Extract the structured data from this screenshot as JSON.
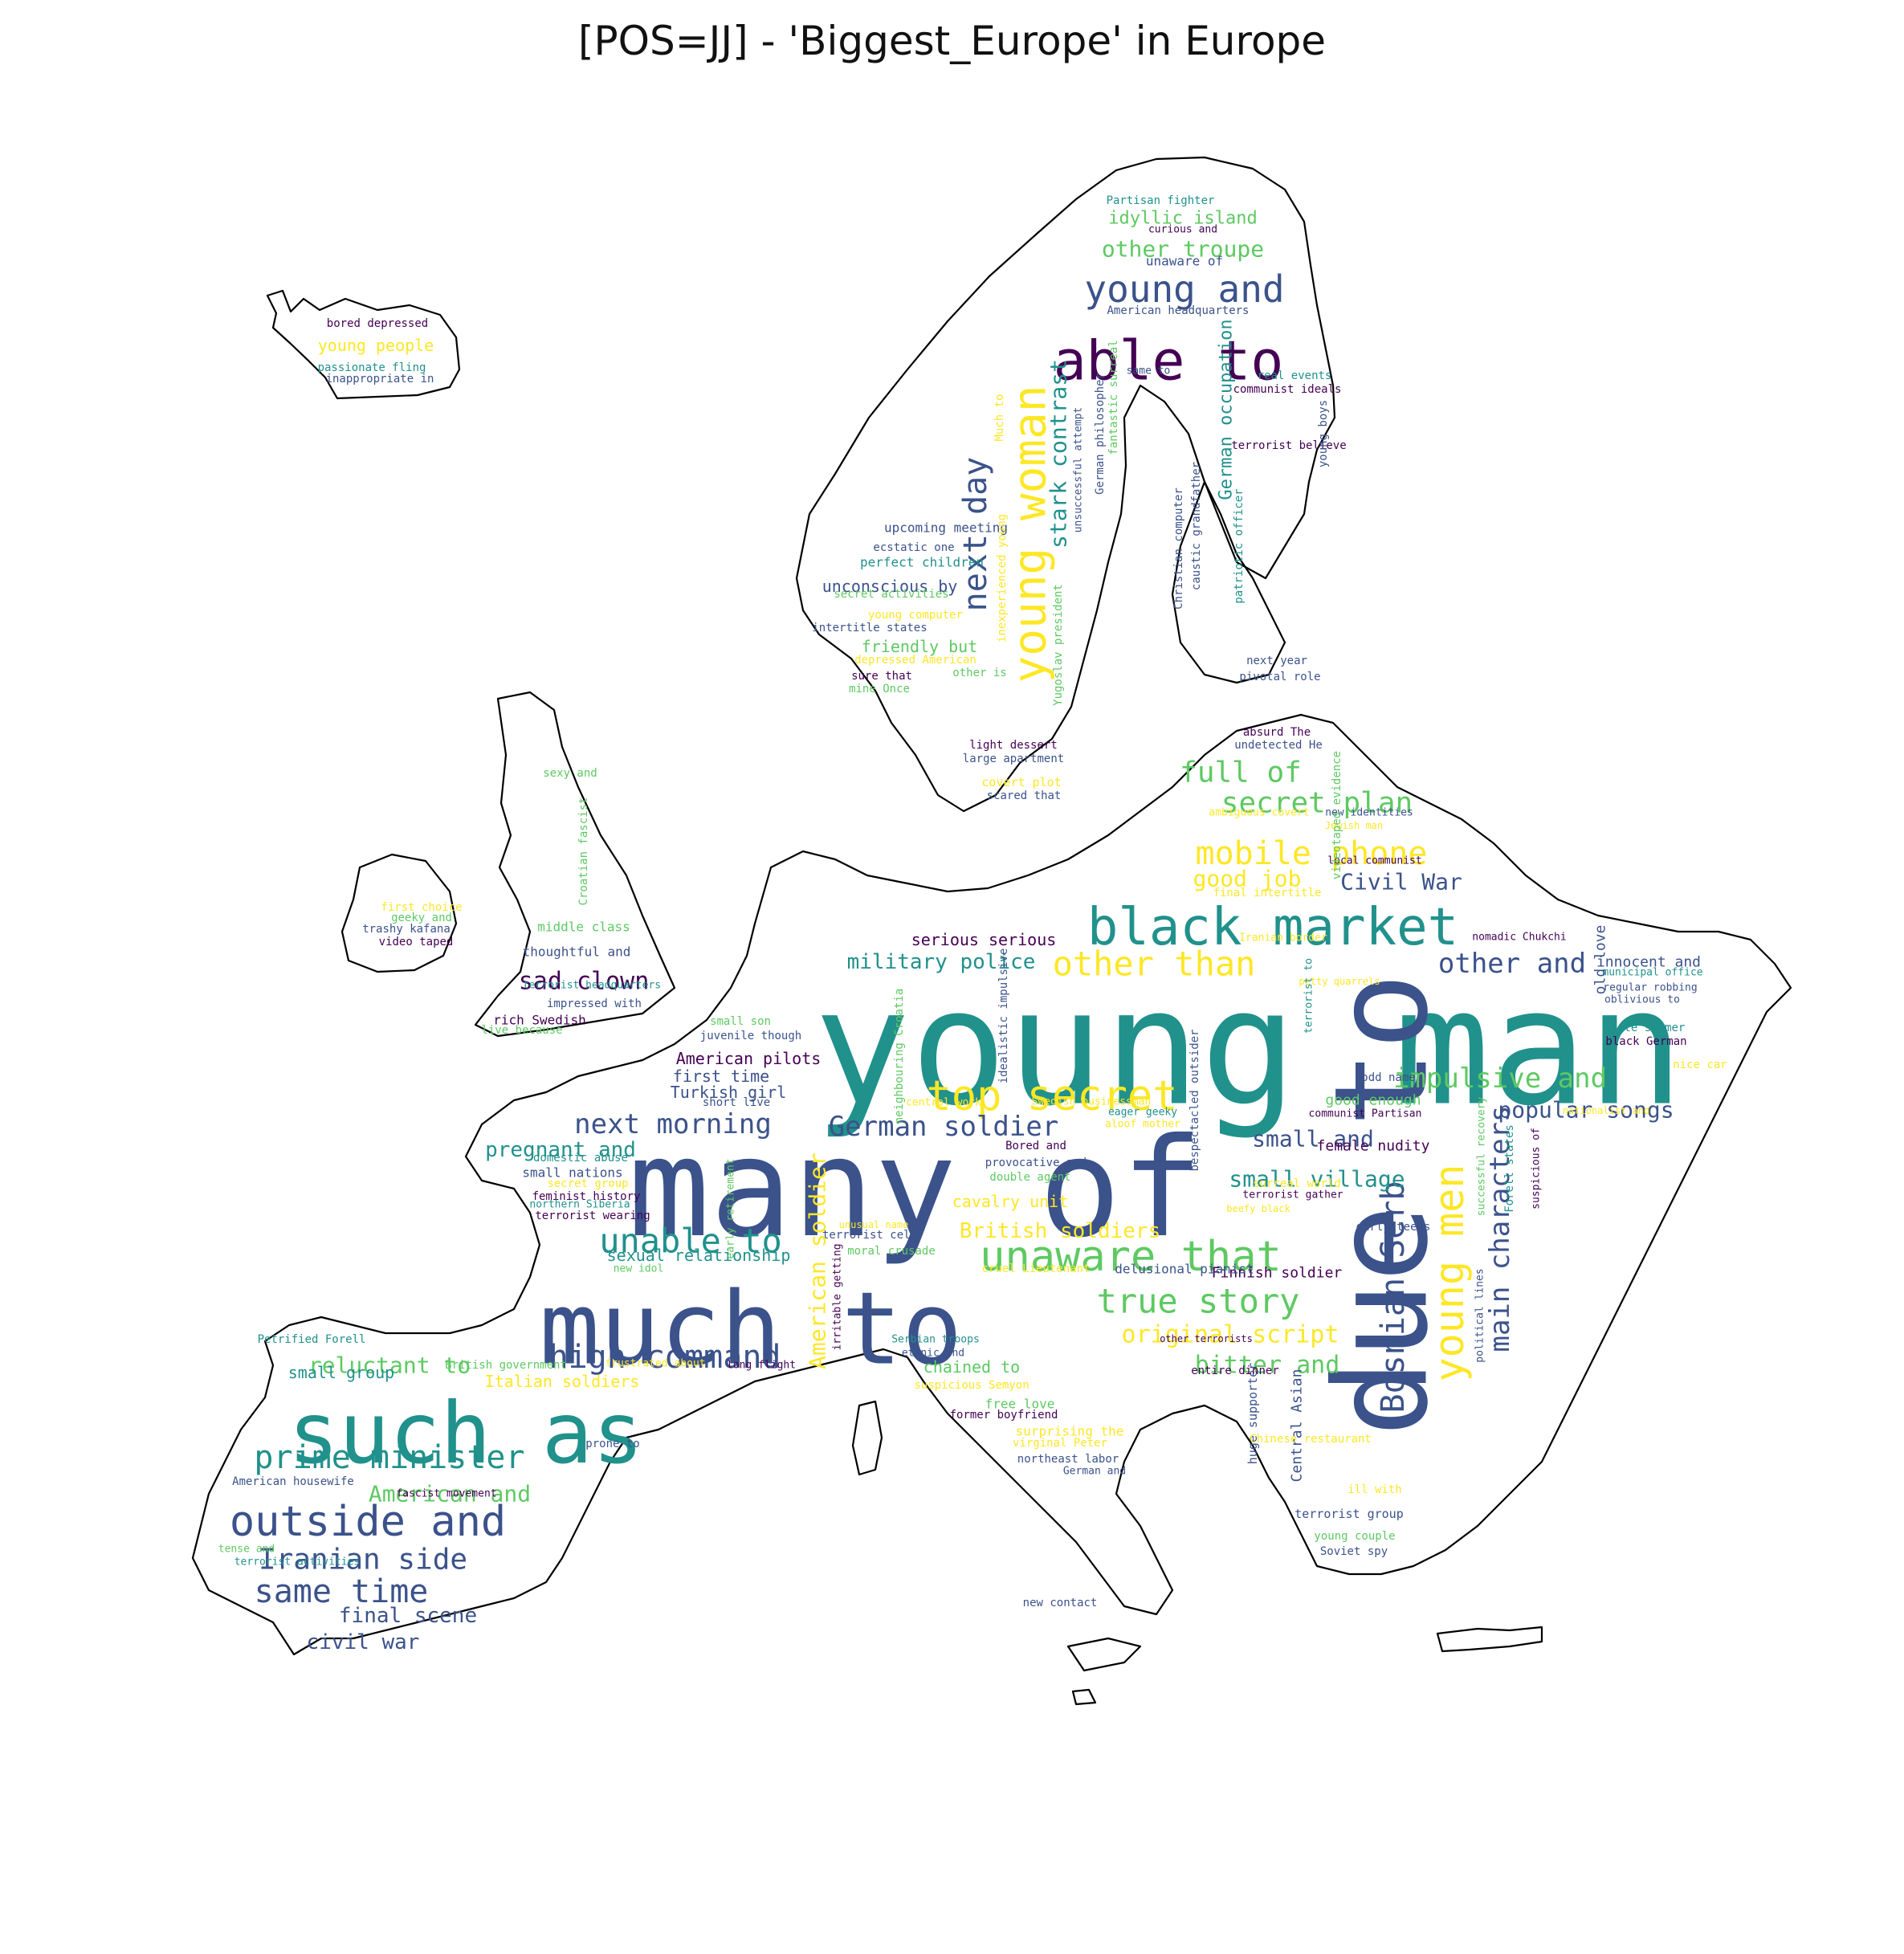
{
  "title": "[POS=JJ] - 'Biggest_Europe' in Europe",
  "palette": [
    "#440154",
    "#3b528b",
    "#21918c",
    "#5ec962",
    "#fde725"
  ],
  "words": [
    {
      "text": "young man",
      "c": 2
    },
    {
      "text": "many of",
      "c": 1
    },
    {
      "text": "due to",
      "c": 1
    },
    {
      "text": "much to",
      "c": 1
    },
    {
      "text": "such as",
      "c": 2
    },
    {
      "text": "able to",
      "c": 0
    },
    {
      "text": "young woman",
      "c": 4
    },
    {
      "text": "young and",
      "c": 1
    },
    {
      "text": "black market",
      "c": 2
    },
    {
      "text": "top secret",
      "c": 4
    },
    {
      "text": "unaware that",
      "c": 3
    },
    {
      "text": "young men",
      "c": 4
    },
    {
      "text": "Bosnian Serb",
      "c": 1
    },
    {
      "text": "outside and",
      "c": 1
    },
    {
      "text": "prime minister",
      "c": 2
    },
    {
      "text": "next day",
      "c": 1
    },
    {
      "text": "unable to",
      "c": 2
    },
    {
      "text": "true story",
      "c": 3
    },
    {
      "text": "high command",
      "c": 1
    },
    {
      "text": "Iranian side",
      "c": 1
    },
    {
      "text": "same time",
      "c": 1
    },
    {
      "text": "mobile phone",
      "c": 4
    },
    {
      "text": "secret plan",
      "c": 3
    },
    {
      "text": "full of",
      "c": 3
    },
    {
      "text": "other than",
      "c": 4
    },
    {
      "text": "other and",
      "c": 1
    },
    {
      "text": "impulsive and",
      "c": 3
    },
    {
      "text": "next morning",
      "c": 1
    },
    {
      "text": "German soldier",
      "c": 1
    },
    {
      "text": "main characters",
      "c": 1
    },
    {
      "text": "stark contrast",
      "c": 2
    },
    {
      "text": "other troupe",
      "c": 3
    },
    {
      "text": "sad clown",
      "c": 0
    },
    {
      "text": "military police",
      "c": 2
    },
    {
      "text": "small and",
      "c": 1
    },
    {
      "text": "small village",
      "c": 2
    },
    {
      "text": "popular songs",
      "c": 1
    },
    {
      "text": "original script",
      "c": 4
    },
    {
      "text": "bitter and",
      "c": 3
    },
    {
      "text": "Civil War",
      "c": 1
    },
    {
      "text": "good job",
      "c": 4
    },
    {
      "text": "British soldiers",
      "c": 4
    },
    {
      "text": "American soldier",
      "c": 4
    },
    {
      "text": "reluctant to",
      "c": 3
    },
    {
      "text": "American and",
      "c": 3
    },
    {
      "text": "final scene",
      "c": 1
    },
    {
      "text": "civil war",
      "c": 1
    },
    {
      "text": "pregnant and",
      "c": 2
    },
    {
      "text": "German occupation",
      "c": 2
    },
    {
      "text": "idyllic island",
      "c": 3
    },
    {
      "text": "serious serious",
      "c": 0
    },
    {
      "text": "American pilots",
      "c": 0
    },
    {
      "text": "first time",
      "c": 1
    },
    {
      "text": "Turkish girl",
      "c": 1
    },
    {
      "text": "friendly but",
      "c": 3
    },
    {
      "text": "unconscious by",
      "c": 1
    },
    {
      "text": "young people",
      "c": 4
    },
    {
      "text": "bored depressed",
      "c": 0
    },
    {
      "text": "passionate fling",
      "c": 2
    },
    {
      "text": "inappropriate in",
      "c": 1
    },
    {
      "text": "unaware of",
      "c": 1
    },
    {
      "text": "curious and",
      "c": 0
    },
    {
      "text": "Partisan fighter",
      "c": 2
    },
    {
      "text": "American headquarters",
      "c": 1
    },
    {
      "text": "same to",
      "c": 1
    },
    {
      "text": "real events",
      "c": 2
    },
    {
      "text": "communist ideals",
      "c": 0
    },
    {
      "text": "terrorist believe",
      "c": 0
    },
    {
      "text": "young boys",
      "c": 1
    },
    {
      "text": "upcoming meeting",
      "c": 1
    },
    {
      "text": "ecstatic one",
      "c": 1
    },
    {
      "text": "perfect children",
      "c": 2
    },
    {
      "text": "secret activities",
      "c": 3
    },
    {
      "text": "young computer",
      "c": 4
    },
    {
      "text": "intertitle states",
      "c": 1
    },
    {
      "text": "depressed American",
      "c": 4
    },
    {
      "text": "sure that",
      "c": 0
    },
    {
      "text": "other is",
      "c": 3
    },
    {
      "text": "mine Once",
      "c": 3
    },
    {
      "text": "next year",
      "c": 1
    },
    {
      "text": "pivotal role",
      "c": 1
    },
    {
      "text": "absurd The",
      "c": 0
    },
    {
      "text": "undetected He",
      "c": 1
    },
    {
      "text": "light dessert",
      "c": 0
    },
    {
      "text": "large apartment",
      "c": 1
    },
    {
      "text": "covert plot",
      "c": 4
    },
    {
      "text": "scared that",
      "c": 1
    },
    {
      "text": "ambiguous covert",
      "c": 4
    },
    {
      "text": "new identities",
      "c": 1
    },
    {
      "text": "Jewish man",
      "c": 4
    },
    {
      "text": "local communist",
      "c": 0
    },
    {
      "text": "final intertitle",
      "c": 4
    },
    {
      "text": "videotaped evidence",
      "c": 3
    },
    {
      "text": "Iranian border",
      "c": 4
    },
    {
      "text": "nomadic Chukchi",
      "c": 0
    },
    {
      "text": "innocent and",
      "c": 1
    },
    {
      "text": "municipal office",
      "c": 2
    },
    {
      "text": "regular robbing",
      "c": 1
    },
    {
      "text": "oblivious to",
      "c": 1
    },
    {
      "text": "late summer",
      "c": 2
    },
    {
      "text": "black German",
      "c": 0
    },
    {
      "text": "nice car",
      "c": 4
    },
    {
      "text": "old love",
      "c": 1
    },
    {
      "text": "petty quarrels",
      "c": 4
    },
    {
      "text": "terrorist to",
      "c": 2
    },
    {
      "text": "odd name",
      "c": 1
    },
    {
      "text": "good enough",
      "c": 3
    },
    {
      "text": "communist Partisan",
      "c": 0
    },
    {
      "text": "female nudity",
      "c": 0
    },
    {
      "text": "surreal world",
      "c": 4
    },
    {
      "text": "terrorist gather",
      "c": 0
    },
    {
      "text": "beefy black",
      "c": 4
    },
    {
      "text": "early teens",
      "c": 1
    },
    {
      "text": "successful recovery",
      "c": 3
    },
    {
      "text": "Forell states",
      "c": 2
    },
    {
      "text": "suspicious of",
      "c": 0
    },
    {
      "text": "nationalist and",
      "c": 4
    },
    {
      "text": "political lines",
      "c": 1
    },
    {
      "text": "huge supporter",
      "c": 1
    },
    {
      "text": "Central Asian",
      "c": 1
    },
    {
      "text": "entire dinner",
      "c": 0
    },
    {
      "text": "Chinese restaurant",
      "c": 4
    },
    {
      "text": "ill with",
      "c": 4
    },
    {
      "text": "terrorist group",
      "c": 1
    },
    {
      "text": "young couple",
      "c": 3
    },
    {
      "text": "Soviet spy",
      "c": 1
    },
    {
      "text": "other terrorists",
      "c": 0
    },
    {
      "text": "Finnish soldier",
      "c": 0
    },
    {
      "text": "delusional pianist",
      "c": 1
    },
    {
      "text": "cruel Lieutenant",
      "c": 4
    },
    {
      "text": "moral crusade",
      "c": 3
    },
    {
      "text": "new idol",
      "c": 3
    },
    {
      "text": "sexual relationship",
      "c": 2
    },
    {
      "text": "irritable getting",
      "c": 0
    },
    {
      "text": "terrorist cell",
      "c": 1
    },
    {
      "text": "unusual name",
      "c": 4
    },
    {
      "text": "early retirement",
      "c": 3
    },
    {
      "text": "Serbian troops",
      "c": 2
    },
    {
      "text": "ethnic and",
      "c": 1
    },
    {
      "text": "long flight",
      "c": 0
    },
    {
      "text": "chained to",
      "c": 3
    },
    {
      "text": "suspicious Semyon",
      "c": 4
    },
    {
      "text": "free love",
      "c": 3
    },
    {
      "text": "former boyfriend",
      "c": 0
    },
    {
      "text": "surprising the",
      "c": 4
    },
    {
      "text": "virginal Peter",
      "c": 4
    },
    {
      "text": "northeast labor",
      "c": 1
    },
    {
      "text": "German and",
      "c": 1
    },
    {
      "text": "new contact",
      "c": 1
    },
    {
      "text": "cavalry unit",
      "c": 4
    },
    {
      "text": "double agent",
      "c": 3
    },
    {
      "text": "provocative and",
      "c": 1
    },
    {
      "text": "Bored and",
      "c": 0
    },
    {
      "text": "eager geeky",
      "c": 2
    },
    {
      "text": "aloof mother",
      "c": 4
    },
    {
      "text": "Swedish businessman",
      "c": 4
    },
    {
      "text": "central work",
      "c": 4
    },
    {
      "text": "short live",
      "c": 1
    },
    {
      "text": "small son",
      "c": 3
    },
    {
      "text": "juvenile though",
      "c": 1
    },
    {
      "text": "neighbouring Croatia",
      "c": 3
    },
    {
      "text": "idealistic impulsive",
      "c": 1
    },
    {
      "text": "bespectacled outsider",
      "c": 1
    },
    {
      "text": "domestic abuse",
      "c": 2
    },
    {
      "text": "small nations",
      "c": 1
    },
    {
      "text": "secret group",
      "c": 4
    },
    {
      "text": "feminist history",
      "c": 0
    },
    {
      "text": "northern Siberia",
      "c": 2
    },
    {
      "text": "terrorist wearing",
      "c": 0
    },
    {
      "text": "Italian soldiers",
      "c": 4
    },
    {
      "text": "British government",
      "c": 3
    },
    {
      "text": "frustrated about",
      "c": 4
    },
    {
      "text": "small group",
      "c": 2
    },
    {
      "text": "Petrified Forell",
      "c": 2
    },
    {
      "text": "prone to",
      "c": 1
    },
    {
      "text": "American housewife",
      "c": 1
    },
    {
      "text": "fascist movement",
      "c": 0
    },
    {
      "text": "tense and",
      "c": 3
    },
    {
      "text": "terrorist activities",
      "c": 2
    },
    {
      "text": "sexy and",
      "c": 3
    },
    {
      "text": "Croatian fascist",
      "c": 3
    },
    {
      "text": "middle class",
      "c": 3
    },
    {
      "text": "thoughtful and",
      "c": 1
    },
    {
      "text": "first choice",
      "c": 4
    },
    {
      "text": "geeky and",
      "c": 3
    },
    {
      "text": "trashy kafana",
      "c": 1
    },
    {
      "text": "video taped",
      "c": 0
    },
    {
      "text": "terrorist headquarters",
      "c": 2
    },
    {
      "text": "impressed with",
      "c": 1
    },
    {
      "text": "rich Swedish",
      "c": 0
    },
    {
      "text": "live because",
      "c": 3
    },
    {
      "text": "inexperienced young",
      "c": 4
    },
    {
      "text": "Yugoslav president",
      "c": 3
    },
    {
      "text": "Much to",
      "c": 4
    },
    {
      "text": "German philosopher",
      "c": 1
    },
    {
      "text": "fantastic surreal",
      "c": 3
    },
    {
      "text": "unsuccessful attempt",
      "c": 1
    },
    {
      "text": "Christian computer",
      "c": 1
    },
    {
      "text": "caustic grandfather",
      "c": 1
    },
    {
      "text": "patriotic officer",
      "c": 2
    }
  ]
}
